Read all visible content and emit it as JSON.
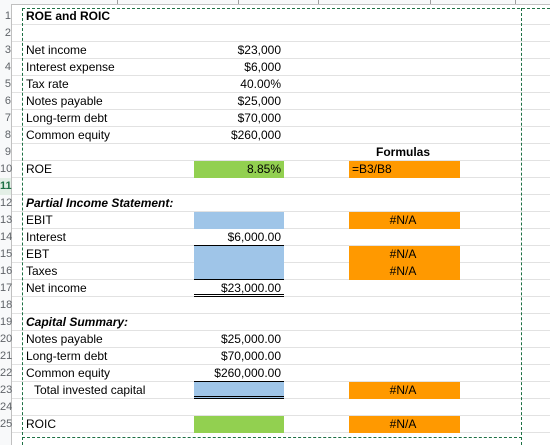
{
  "rows": [
    {
      "n": "1",
      "a": "ROE and ROIC",
      "aStyle": "title"
    },
    {
      "n": "2"
    },
    {
      "n": "3",
      "a": "Net income",
      "b": "$23,000"
    },
    {
      "n": "4",
      "a": "Interest expense",
      "b": "$6,000"
    },
    {
      "n": "5",
      "a": "Tax rate",
      "b": "40.00%"
    },
    {
      "n": "6",
      "a": "Notes payable",
      "b": "$25,000"
    },
    {
      "n": "7",
      "a": "Long-term debt",
      "b": "$70,000"
    },
    {
      "n": "8",
      "a": "Common equity",
      "b": "$260,000"
    },
    {
      "n": "9",
      "d": "Formulas",
      "dStyle": "center bold"
    },
    {
      "n": "10",
      "a": "ROE",
      "b": "8.85%",
      "bFill": "green",
      "d": "=B3/B8",
      "dFill": "orange",
      "dStyle": "left"
    },
    {
      "n": "11",
      "selected": true
    },
    {
      "n": "12",
      "a": "Partial Income Statement:",
      "aStyle": "it"
    },
    {
      "n": "13",
      "a": "EBIT",
      "bFill": "blue",
      "d": "#N/A",
      "dFill": "orange",
      "dStyle": "center"
    },
    {
      "n": "14",
      "a": "Interest",
      "b": "$6,000.00",
      "bStyle": "ul"
    },
    {
      "n": "15",
      "a": "EBT",
      "bFill": "blue",
      "d": "#N/A",
      "dFill": "orange",
      "dStyle": "center"
    },
    {
      "n": "16",
      "a": "Taxes",
      "bFill": "blue",
      "bStyle": "ul",
      "d": "#N/A",
      "dFill": "orange",
      "dStyle": "center"
    },
    {
      "n": "17",
      "a": "Net income",
      "b": "$23,000.00",
      "bStyle": "dul"
    },
    {
      "n": "18"
    },
    {
      "n": "19",
      "a": "Capital Summary:",
      "aStyle": "it"
    },
    {
      "n": "20",
      "a": "Notes payable",
      "b": "$25,000.00"
    },
    {
      "n": "21",
      "a": "Long-term debt",
      "b": "$70,000.00"
    },
    {
      "n": "22",
      "a": "Common equity",
      "b": "$260,000.00",
      "bStyle": "ul"
    },
    {
      "n": "23",
      "a": "Total invested capital",
      "aStyle": "indent",
      "bFill": "blue",
      "bStyle": "dul",
      "d": "#N/A",
      "dFill": "orange",
      "dStyle": "center"
    },
    {
      "n": "24"
    },
    {
      "n": "25",
      "a": "ROIC",
      "bFill": "green",
      "d": "#N/A",
      "dFill": "orange",
      "dStyle": "center"
    }
  ]
}
